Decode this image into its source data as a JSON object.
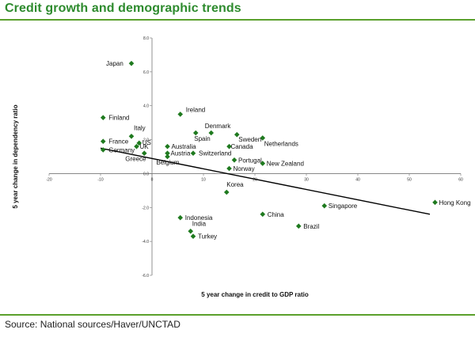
{
  "title": "Credit growth and demographic trends",
  "source": "Source:  National sources/Haver/UNCTAD",
  "colors": {
    "title": "#2e8b2e",
    "marker": "#1f7a1f",
    "rule": "#5aa02c",
    "trend": "#000000"
  },
  "chart_data": {
    "type": "scatter",
    "title": "Credit growth and demographic trends",
    "xlabel": "5 year change in credit to GDP ratio",
    "ylabel": "5 year change in dependency ratio",
    "xlim": [
      -20,
      60
    ],
    "ylim": [
      -6,
      8
    ],
    "xticks": [
      "-20",
      "-10",
      "0",
      "10",
      "20",
      "30",
      "40",
      "50",
      "60"
    ],
    "yticks": [
      "8.0",
      "6.0",
      "4.0",
      "2.0",
      "0.0",
      "-2.0",
      "-4.0",
      "-6.0"
    ],
    "points": [
      {
        "label": "Japan",
        "x": -4,
        "y": 6.5
      },
      {
        "label": "Ireland",
        "x": 5.5,
        "y": 3.5
      },
      {
        "label": "Finland",
        "x": -9.5,
        "y": 3.3
      },
      {
        "label": "Italy",
        "x": -4,
        "y": 2.2
      },
      {
        "label": "US",
        "x": -2.5,
        "y": 1.8
      },
      {
        "label": "France",
        "x": -9.5,
        "y": 1.9
      },
      {
        "label": "UK",
        "x": -3,
        "y": 1.6
      },
      {
        "label": "Germany",
        "x": -9.5,
        "y": 1.4
      },
      {
        "label": "Greece",
        "x": -1.5,
        "y": 1.2
      },
      {
        "label": "Spain",
        "x": 8.5,
        "y": 2.4
      },
      {
        "label": "Denmark",
        "x": 11.5,
        "y": 2.4
      },
      {
        "label": "Sweden",
        "x": 16.5,
        "y": 2.3
      },
      {
        "label": "Netherlands",
        "x": 21.5,
        "y": 2.1
      },
      {
        "label": "Canada",
        "x": 15,
        "y": 1.6
      },
      {
        "label": "Australia",
        "x": 3,
        "y": 1.6
      },
      {
        "label": "Austria",
        "x": 3,
        "y": 1.2
      },
      {
        "label": "Belgium",
        "x": 3,
        "y": 1.0
      },
      {
        "label": "Switzerland",
        "x": 8,
        "y": 1.2
      },
      {
        "label": "Portugal",
        "x": 16,
        "y": 0.8
      },
      {
        "label": "Norway",
        "x": 15,
        "y": 0.3
      },
      {
        "label": "New Zealand",
        "x": 21.5,
        "y": 0.6
      },
      {
        "label": "Korea",
        "x": 14.5,
        "y": -1.1
      },
      {
        "label": "Hong Kong",
        "x": 55,
        "y": -1.7
      },
      {
        "label": "Singapore",
        "x": 33.5,
        "y": -1.9
      },
      {
        "label": "China",
        "x": 21.5,
        "y": -2.4
      },
      {
        "label": "Indonesia",
        "x": 5.5,
        "y": -2.6
      },
      {
        "label": "Brazil",
        "x": 28.5,
        "y": -3.1
      },
      {
        "label": "India",
        "x": 7.5,
        "y": -3.4
      },
      {
        "label": "Turkey",
        "x": 8,
        "y": -3.7
      }
    ],
    "trendline": {
      "x": [
        -10,
        54
      ],
      "y": [
        1.5,
        -2.4
      ]
    },
    "grid": false,
    "legend": "none"
  }
}
